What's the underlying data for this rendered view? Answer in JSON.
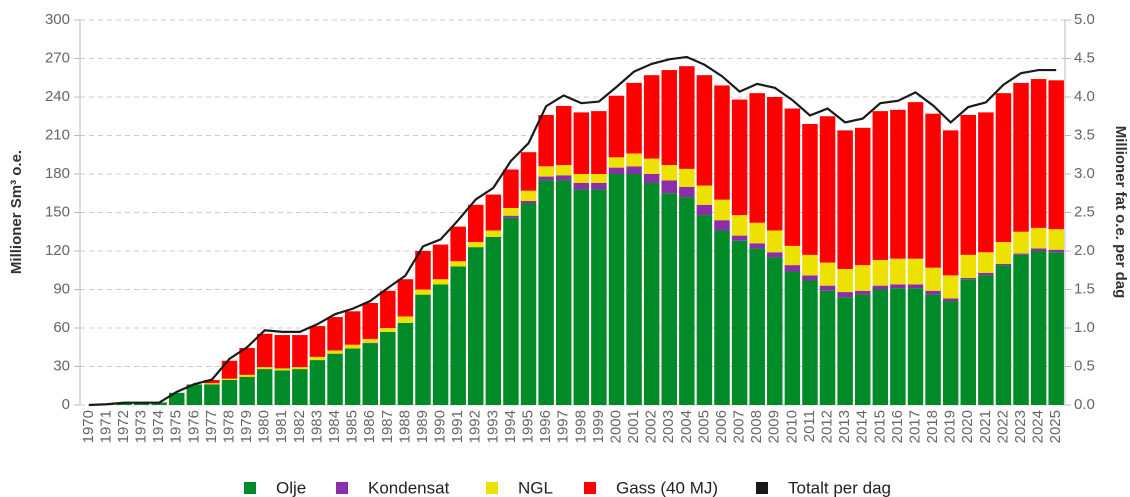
{
  "chart_data": {
    "type": "bar",
    "stacked": true,
    "ylabel": "Millioner Sm³ o.e.",
    "y2label": "Millioner fat o.e. per dag",
    "categories": [
      "1970",
      "1971",
      "1972",
      "1973",
      "1974",
      "1975",
      "1976",
      "1977",
      "1978",
      "1979",
      "1980",
      "1981",
      "1982",
      "1983",
      "1984",
      "1985",
      "1986",
      "1987",
      "1988",
      "1989",
      "1990",
      "1991",
      "1992",
      "1993",
      "1994",
      "1995",
      "1996",
      "1997",
      "1998",
      "1999",
      "2000",
      "2001",
      "2002",
      "2003",
      "2004",
      "2005",
      "2006",
      "2007",
      "2008",
      "2009",
      "2010",
      "2011",
      "2012",
      "2013",
      "2014",
      "2015",
      "2016",
      "2017",
      "2018",
      "2019",
      "2020",
      "2021",
      "2022",
      "2023",
      "2024",
      "2025"
    ],
    "series": [
      {
        "name": "Olje",
        "color": "#008a28",
        "values": [
          0,
          0.4,
          1.9,
          1.9,
          2,
          9.5,
          16,
          16,
          19.5,
          22,
          28,
          27,
          28,
          35,
          40,
          44,
          48,
          57,
          64,
          86,
          94,
          108,
          123,
          131,
          146,
          157,
          175,
          175,
          168,
          168,
          180,
          180,
          173,
          165,
          162,
          148,
          136,
          128,
          122,
          115,
          104,
          97,
          89,
          84,
          86,
          90,
          91,
          91,
          86,
          81,
          98,
          101,
          109,
          117,
          120,
          119
        ]
      },
      {
        "name": "Kondensat",
        "color": "#8b2fa8",
        "values": [
          0,
          0,
          0,
          0,
          0,
          0,
          0,
          0,
          0,
          0,
          0,
          0,
          0,
          0,
          0,
          0,
          0.5,
          0,
          0,
          0,
          0,
          0,
          0,
          0,
          1.5,
          2,
          3,
          4,
          5,
          5,
          5,
          6,
          7,
          10,
          8,
          8,
          8,
          4,
          4,
          4,
          5,
          4,
          4,
          4,
          3,
          3,
          3,
          3,
          3,
          2,
          1,
          2,
          1,
          1,
          2,
          2
        ]
      },
      {
        "name": "NGL",
        "color": "#ede100",
        "values": [
          0,
          0,
          0,
          0,
          0,
          0,
          0,
          1,
          1,
          1.5,
          1.5,
          1.5,
          1.5,
          2.5,
          2.5,
          3,
          3,
          3,
          5,
          4,
          4,
          4,
          4,
          5,
          6,
          8,
          8,
          8,
          7,
          7,
          8,
          10,
          12,
          12,
          14,
          15,
          16,
          16,
          16,
          17,
          15,
          16,
          18,
          18,
          20,
          20,
          20,
          20,
          18,
          18,
          18,
          16,
          17,
          17,
          16,
          16
        ]
      },
      {
        "name": "Gass (40 MJ)",
        "color": "#ff0000",
        "values": [
          0,
          0,
          0,
          0,
          0,
          0,
          0,
          2.5,
          14,
          21,
          26,
          26,
          25,
          24,
          26,
          26,
          28,
          29,
          29,
          30,
          27,
          27,
          29,
          28,
          30,
          30,
          40,
          46,
          48,
          49,
          48,
          55,
          65,
          74,
          80,
          86,
          89,
          90,
          101,
          104,
          107,
          102,
          114,
          108,
          107,
          116,
          116,
          122,
          120,
          113,
          109,
          109,
          116,
          116,
          116,
          116
        ]
      },
      {
        "name": "Totalt per dag",
        "color": "#1a1a1a",
        "type": "line",
        "axis": "y2",
        "values": [
          0,
          0.01,
          0.03,
          0.03,
          0.03,
          0.17,
          0.27,
          0.33,
          0.6,
          0.75,
          0.97,
          0.95,
          0.95,
          1.05,
          1.18,
          1.25,
          1.35,
          1.52,
          1.68,
          2.06,
          2.15,
          2.4,
          2.67,
          2.82,
          3.17,
          3.4,
          3.88,
          4.02,
          3.92,
          3.94,
          4.13,
          4.33,
          4.43,
          4.49,
          4.52,
          4.42,
          4.27,
          4.07,
          4.17,
          4.12,
          3.96,
          3.76,
          3.85,
          3.67,
          3.72,
          3.92,
          3.95,
          4.06,
          3.89,
          3.67,
          3.87,
          3.93,
          4.16,
          4.31,
          4.35,
          4.35
        ]
      }
    ],
    "ylim": [
      0,
      300
    ],
    "yticks": [
      0,
      30,
      60,
      90,
      120,
      150,
      180,
      210,
      240,
      270,
      300
    ],
    "y2lim": [
      0,
      5
    ],
    "y2ticks": [
      {
        "value": 0,
        "label": "0.0"
      },
      0.5,
      {
        "value": 1,
        "label": "1.0"
      },
      1.5,
      {
        "value": 2,
        "label": "2.0"
      },
      2.5,
      {
        "value": 3,
        "label": "3.0"
      },
      3.5,
      {
        "value": 4,
        "label": "4.0"
      },
      4.5,
      {
        "value": 5,
        "label": "5.0"
      }
    ],
    "grid": true,
    "legend": "bottom"
  }
}
